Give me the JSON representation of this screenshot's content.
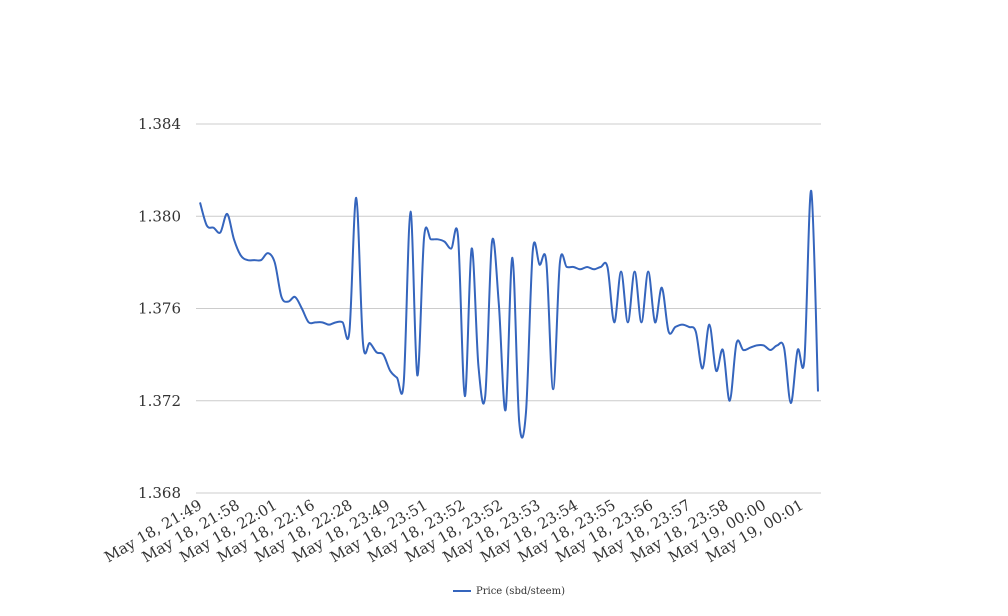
{
  "chart_data": {
    "type": "line",
    "title": "",
    "xlabel": "",
    "ylabel": "",
    "ylim": [
      1.368,
      1.384
    ],
    "yticks": [
      "1.368",
      "1.372",
      "1.376",
      "1.380",
      "1.384"
    ],
    "ytick_values": [
      1.368,
      1.372,
      1.376,
      1.38,
      1.384
    ],
    "xtick_labels": [
      "May 18, 21:49",
      "May 18, 21:58",
      "May 18, 22:01",
      "May 18, 22:16",
      "May 18, 22:28",
      "May 18, 23:49",
      "May 18, 23:51",
      "May 18, 23:52",
      "May 18, 23:52",
      "May 18, 23:53",
      "May 18, 23:54",
      "May 18, 23:55",
      "May 18, 23:56",
      "May 18, 23:57",
      "May 18, 23:58",
      "May 19, 00:00",
      "May 19, 00:01"
    ],
    "grid": "horizontal",
    "legend_position": "bottom",
    "series": [
      {
        "name": "Price (sbd/steem)",
        "color": "#3565bd",
        "values": [
          1.3806,
          1.3796,
          1.3795,
          1.3793,
          1.3801,
          1.379,
          1.3783,
          1.3781,
          1.3781,
          1.3781,
          1.3784,
          1.378,
          1.3765,
          1.3763,
          1.3765,
          1.376,
          1.3754,
          1.3754,
          1.3754,
          1.3753,
          1.3754,
          1.3754,
          1.375,
          1.3808,
          1.3745,
          1.3745,
          1.3741,
          1.374,
          1.3733,
          1.373,
          1.3728,
          1.3802,
          1.3731,
          1.3791,
          1.379,
          1.379,
          1.3789,
          1.3786,
          1.3791,
          1.3722,
          1.3786,
          1.3735,
          1.3722,
          1.3789,
          1.3762,
          1.3716,
          1.3782,
          1.3711,
          1.3715,
          1.3785,
          1.3779,
          1.378,
          1.3725,
          1.378,
          1.3778,
          1.3778,
          1.3777,
          1.3778,
          1.3777,
          1.3778,
          1.3778,
          1.3754,
          1.3776,
          1.3754,
          1.3776,
          1.3754,
          1.3776,
          1.3754,
          1.3769,
          1.375,
          1.3752,
          1.3753,
          1.3752,
          1.375,
          1.3734,
          1.3753,
          1.3733,
          1.3742,
          1.372,
          1.3745,
          1.3742,
          1.3743,
          1.3744,
          1.3744,
          1.3742,
          1.3744,
          1.3743,
          1.3719,
          1.3742,
          1.3738,
          1.3811,
          1.3724
        ]
      }
    ]
  }
}
